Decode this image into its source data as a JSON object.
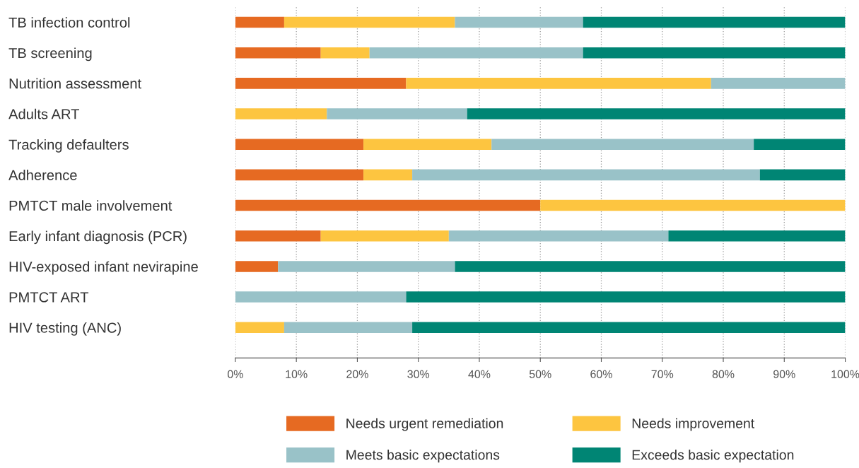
{
  "chart_data": {
    "type": "bar",
    "orientation": "horizontal",
    "stacked": true,
    "categories": [
      "TB infection control",
      "TB screening",
      "Nutrition assessment",
      "Adults ART",
      "Tracking defaulters",
      "Adherence",
      "PMTCT male involvement",
      "Early infant diagnosis (PCR)",
      "HIV-exposed infant nevirapine",
      "PMTCT ART",
      "HIV testing (ANC)"
    ],
    "series": [
      {
        "name": "Needs urgent remediation",
        "color": "#e66a22",
        "values": [
          8,
          14,
          28,
          0,
          21,
          21,
          50,
          14,
          7,
          0,
          0
        ]
      },
      {
        "name": "Needs improvement",
        "color": "#fdc540",
        "values": [
          28,
          8,
          50,
          15,
          21,
          8,
          50,
          21,
          0,
          0,
          8
        ]
      },
      {
        "name": "Meets basic expectations",
        "color": "#99c2c8",
        "values": [
          21,
          35,
          22,
          23,
          43,
          57,
          0,
          36,
          29,
          28,
          21
        ]
      },
      {
        "name": "Exceeds basic expectation",
        "color": "#008574",
        "values": [
          43,
          43,
          0,
          62,
          15,
          14,
          0,
          29,
          64,
          72,
          71
        ]
      }
    ],
    "xlim": [
      0,
      100
    ],
    "xticks": [
      {
        "value": 0,
        "label": "0%"
      },
      {
        "value": 10,
        "label": "10%"
      },
      {
        "value": 20,
        "label": "20%"
      },
      {
        "value": 30,
        "label": "30%"
      },
      {
        "value": 40,
        "label": "40%"
      },
      {
        "value": 50,
        "label": "50%"
      },
      {
        "value": 60,
        "label": "60%"
      },
      {
        "value": 70,
        "label": "70%"
      },
      {
        "value": 80,
        "label": "80%"
      },
      {
        "value": 90,
        "label": "90%"
      },
      {
        "value": 100,
        "label": "100%"
      }
    ],
    "grid": "x",
    "legend": "bottom"
  }
}
